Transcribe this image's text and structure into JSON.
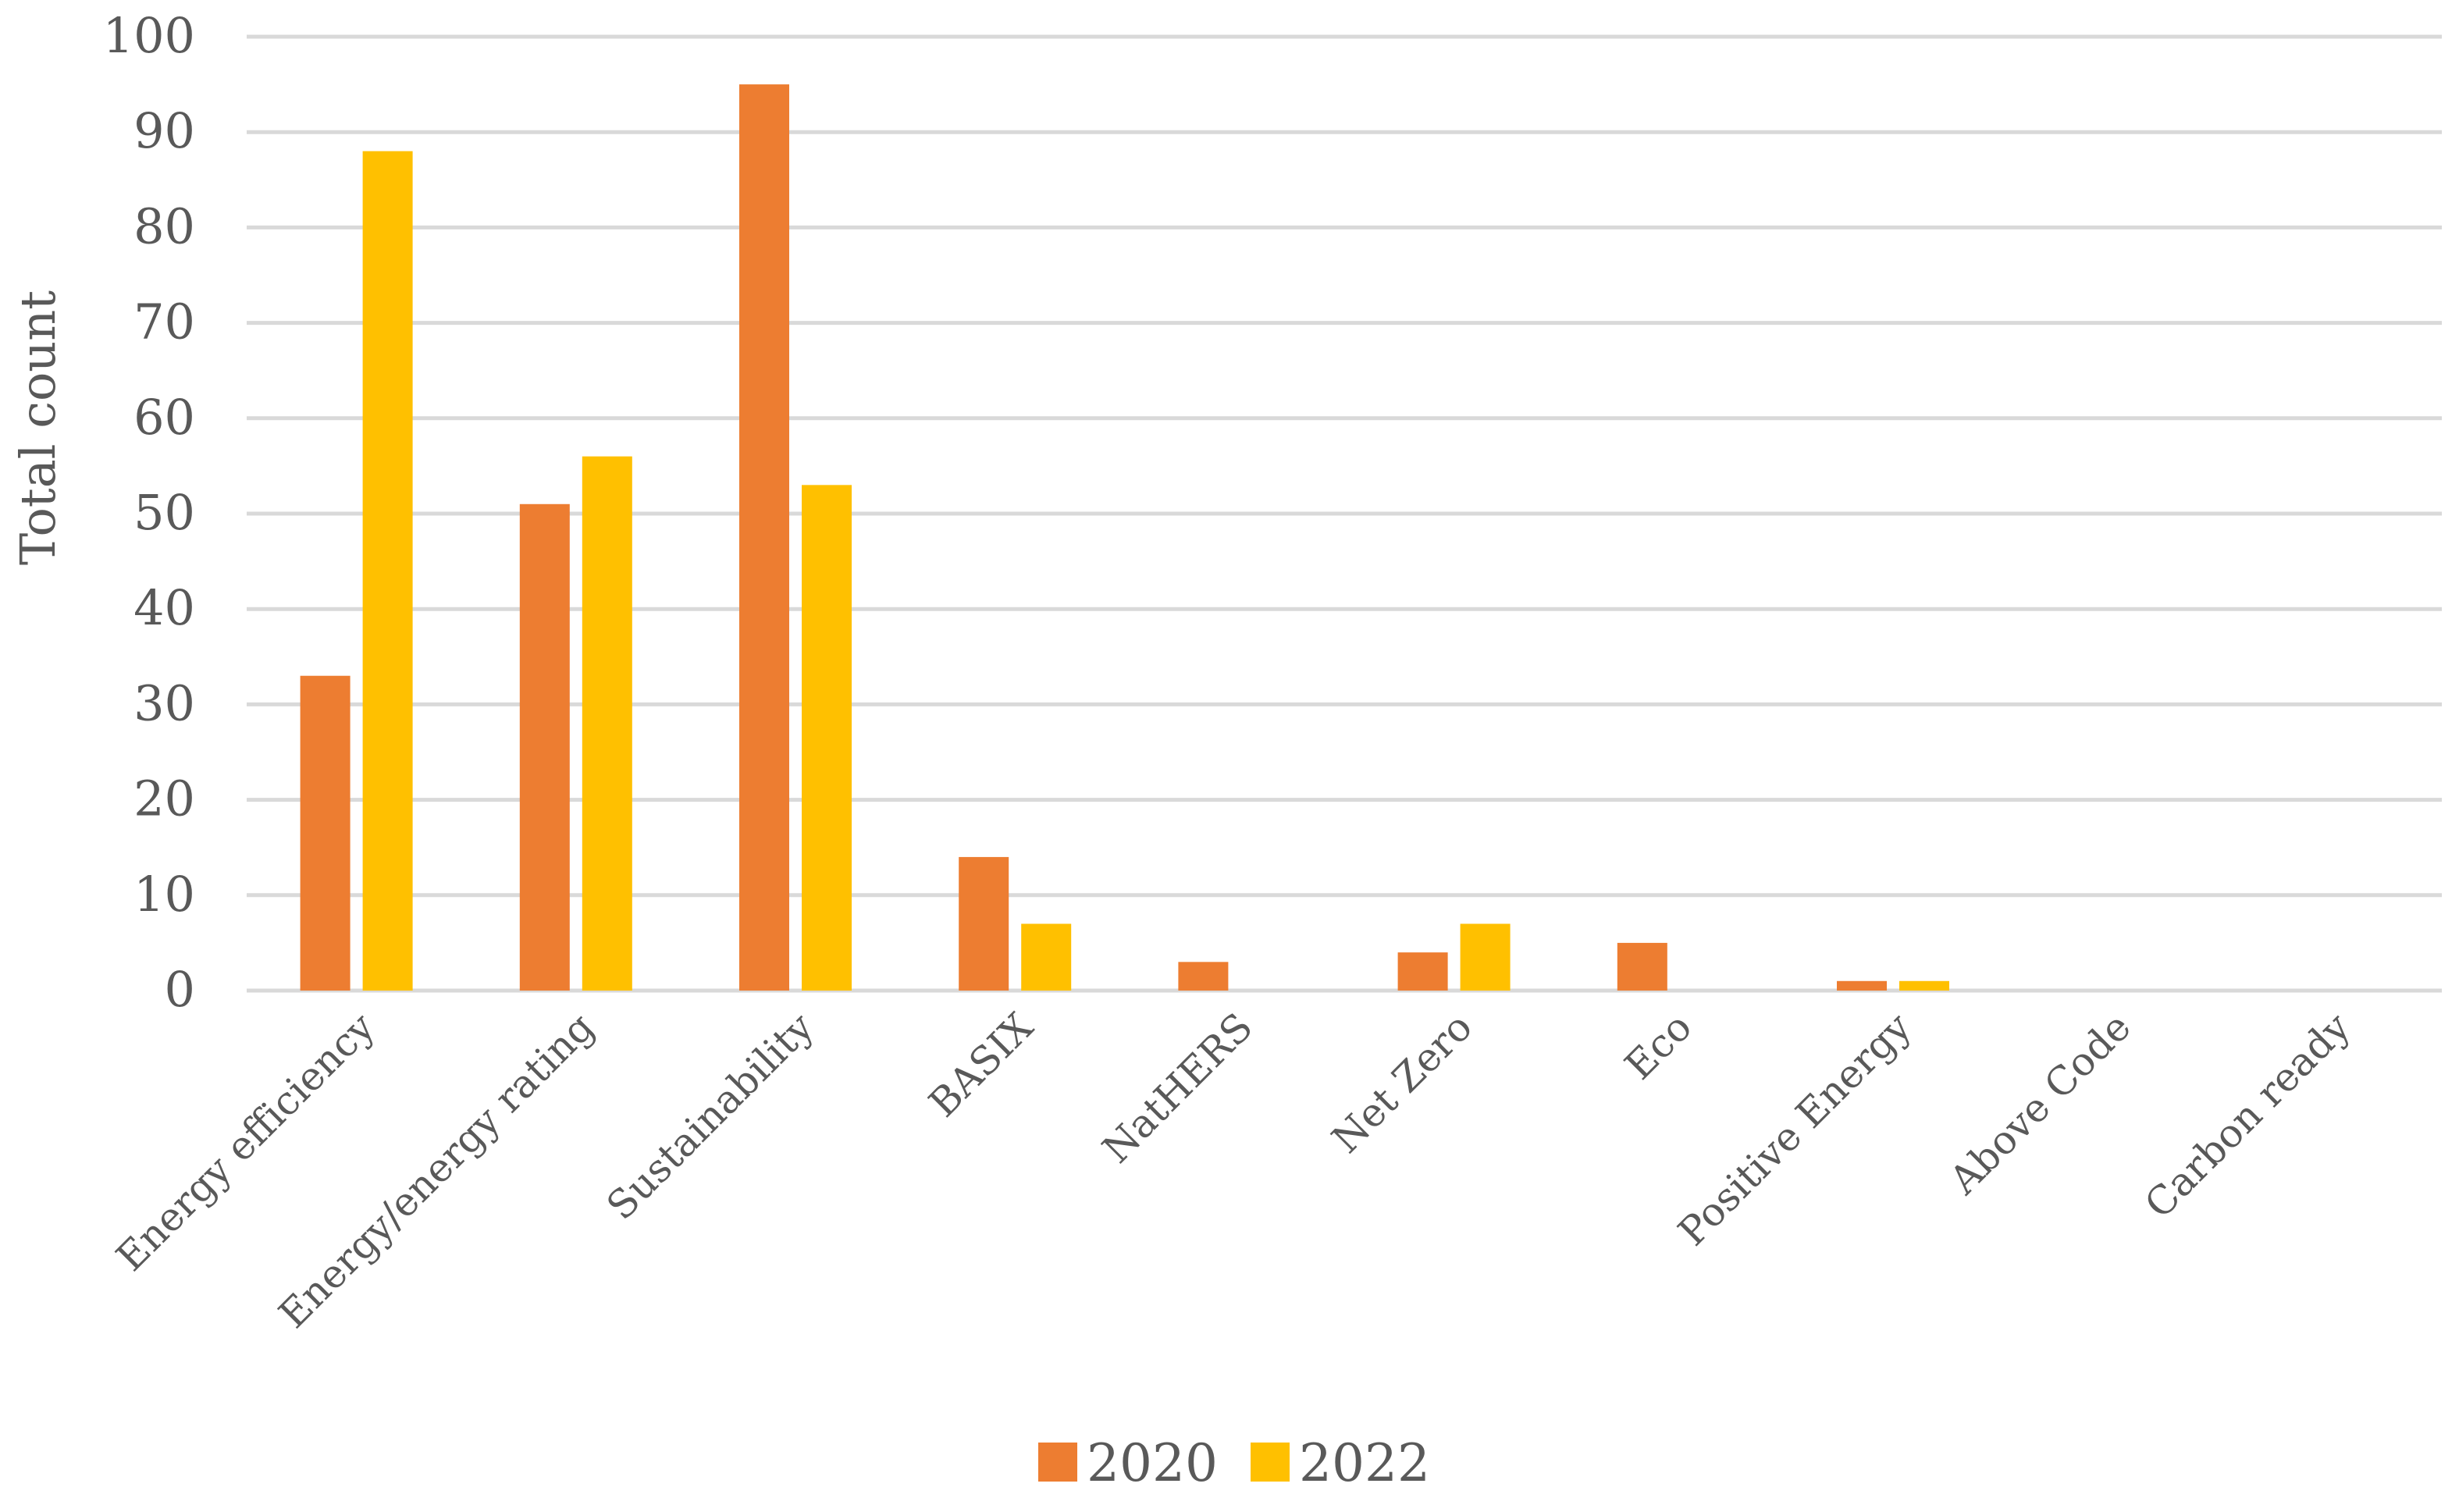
{
  "chart_data": {
    "type": "bar",
    "title": "",
    "xlabel": "",
    "ylabel": "Total count",
    "ylim": [
      0,
      100
    ],
    "yticks": [
      0,
      10,
      20,
      30,
      40,
      50,
      60,
      70,
      80,
      90,
      100
    ],
    "grid": true,
    "legend_position": "bottom",
    "categories": [
      "Energy efficiency",
      "Energy/energy rating",
      "Sustainability",
      "BASIX",
      "NatHERS",
      "Net Zero",
      "Eco",
      "Positive Energy",
      "Above Code",
      "Carbon ready"
    ],
    "series": [
      {
        "name": "2020",
        "color": "#ED7D31",
        "values": [
          33,
          51,
          95,
          14,
          3,
          4,
          5,
          1,
          0,
          0
        ]
      },
      {
        "name": "2022",
        "color": "#FFC000",
        "values": [
          88,
          56,
          53,
          7,
          0,
          7,
          0,
          1,
          0,
          0
        ]
      }
    ]
  }
}
